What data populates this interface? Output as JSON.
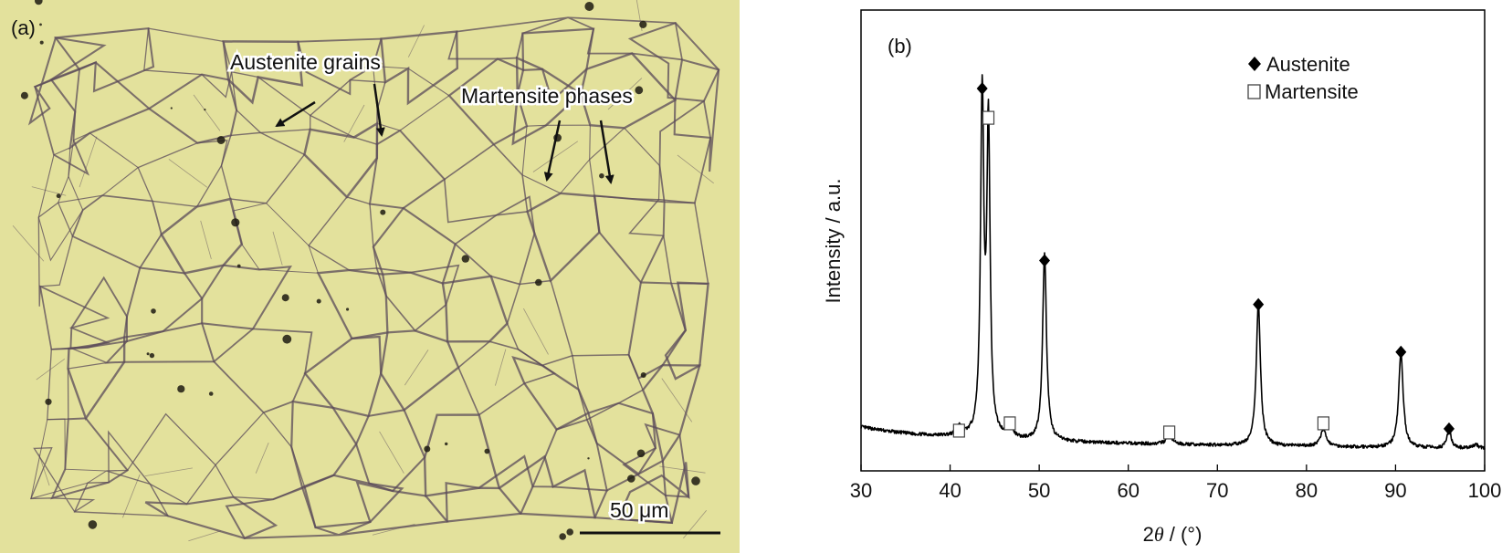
{
  "panel_a": {
    "label": "(a)",
    "annotations": [
      "Austenite grains",
      "Martensite phases"
    ],
    "scale_bar": "50 μm",
    "colors": {
      "matrix": "#e9e8a6",
      "boundary": "#5a4a5a",
      "dark": "#1d1a12"
    }
  },
  "chart_data": {
    "type": "line",
    "panel_label": "(b)",
    "xlabel_prefix": "2",
    "xlabel_symbol": "θ",
    "xlabel_suffix": " / (°)",
    "ylabel": "Intensity / a.u.",
    "xlim": [
      30,
      100
    ],
    "xticks": [
      30,
      40,
      50,
      60,
      70,
      80,
      90,
      100
    ],
    "yticks": [],
    "ylim": [
      0,
      100
    ],
    "legend_position": "top-right",
    "legend": [
      {
        "marker": "filled-diamond",
        "label": "Austenite"
      },
      {
        "marker": "open-square",
        "label": "Martensite"
      }
    ],
    "baseline": [
      [
        30,
        7
      ],
      [
        33,
        5.8
      ],
      [
        36,
        5
      ],
      [
        39,
        4.5
      ],
      [
        42,
        4.2
      ],
      [
        48,
        3.3
      ],
      [
        55,
        2.8
      ],
      [
        60,
        2.5
      ],
      [
        65,
        2.2
      ],
      [
        70,
        2
      ],
      [
        75,
        1.8
      ],
      [
        80,
        1.7
      ],
      [
        85,
        1.5
      ],
      [
        90,
        1.3
      ],
      [
        95,
        1.2
      ],
      [
        100,
        1.1
      ]
    ],
    "peaks": [
      {
        "x": 41.0,
        "h": 2.5,
        "w": 0.3,
        "phase": "Martensite"
      },
      {
        "x": 43.6,
        "h": 92,
        "w": 0.22,
        "phase": "Austenite"
      },
      {
        "x": 44.3,
        "h": 84,
        "w": 0.22,
        "phase": "Martensite"
      },
      {
        "x": 46.7,
        "h": 3.5,
        "w": 0.35,
        "phase": "Martensite"
      },
      {
        "x": 50.6,
        "h": 51,
        "w": 0.26,
        "phase": "Austenite"
      },
      {
        "x": 64.6,
        "h": 2.5,
        "w": 0.4,
        "phase": "Martensite"
      },
      {
        "x": 74.6,
        "h": 39,
        "w": 0.28,
        "phase": "Austenite"
      },
      {
        "x": 81.9,
        "h": 4.5,
        "w": 0.4,
        "phase": "Martensite"
      },
      {
        "x": 90.6,
        "h": 26,
        "w": 0.3,
        "phase": "Austenite"
      },
      {
        "x": 96.0,
        "h": 5.5,
        "w": 0.25,
        "phase": "Austenite"
      },
      {
        "x": 99.0,
        "h": 1,
        "w": 0.4,
        "phase": ""
      }
    ],
    "markers": [
      {
        "phase": "Martensite",
        "x": 41.0,
        "y": 6
      },
      {
        "phase": "Austenite",
        "x": 43.6,
        "y": 99.5
      },
      {
        "phase": "Martensite",
        "x": 44.3,
        "y": 91.5
      },
      {
        "phase": "Martensite",
        "x": 46.7,
        "y": 8
      },
      {
        "phase": "Austenite",
        "x": 50.6,
        "y": 52.5
      },
      {
        "phase": "Martensite",
        "x": 64.6,
        "y": 5.5
      },
      {
        "phase": "Austenite",
        "x": 74.6,
        "y": 40.5
      },
      {
        "phase": "Martensite",
        "x": 81.9,
        "y": 8
      },
      {
        "phase": "Austenite",
        "x": 90.6,
        "y": 27.5
      },
      {
        "phase": "Austenite",
        "x": 96.0,
        "y": 6.5
      }
    ]
  }
}
